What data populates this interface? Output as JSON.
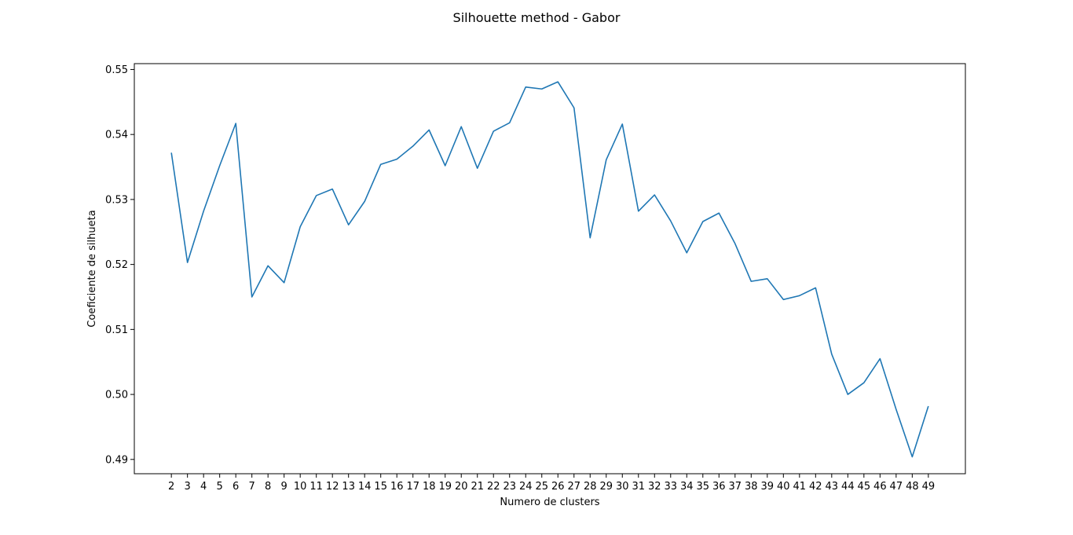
{
  "chart_data": {
    "type": "line",
    "title": "Silhouette method - Gabor",
    "xlabel": "Numero de clusters",
    "ylabel": "Coeficiente de silhueta",
    "x": [
      2,
      3,
      4,
      5,
      6,
      7,
      8,
      9,
      10,
      11,
      12,
      13,
      14,
      15,
      16,
      17,
      18,
      19,
      20,
      21,
      22,
      23,
      24,
      25,
      26,
      27,
      28,
      29,
      30,
      31,
      32,
      33,
      34,
      35,
      36,
      37,
      38,
      39,
      40,
      41,
      42,
      43,
      44,
      45,
      46,
      47,
      48,
      49
    ],
    "series": [
      {
        "values": [
          0.5372,
          0.5203,
          0.5282,
          0.5352,
          0.5417,
          0.515,
          0.5198,
          0.5172,
          0.5258,
          0.5306,
          0.5316,
          0.5261,
          0.5297,
          0.5354,
          0.5362,
          0.5382,
          0.5407,
          0.5352,
          0.5412,
          0.5348,
          0.5405,
          0.5418,
          0.5473,
          0.547,
          0.5481,
          0.5441,
          0.5241,
          0.5361,
          0.5416,
          0.5282,
          0.5307,
          0.5267,
          0.5218,
          0.5266,
          0.5279,
          0.5232,
          0.5174,
          0.5178,
          0.5146,
          0.5152,
          0.5164,
          0.5062,
          0.5,
          0.5018,
          0.5055,
          0.4977,
          0.4904,
          0.4982
        ],
        "color": "#1f77b4"
      }
    ],
    "xticks": [
      "2",
      "3",
      "4",
      "5",
      "6",
      "7",
      "8",
      "9",
      "10",
      "11",
      "12",
      "13",
      "14",
      "15",
      "16",
      "17",
      "18",
      "19",
      "20",
      "21",
      "22",
      "23",
      "24",
      "25",
      "26",
      "27",
      "28",
      "29",
      "30",
      "31",
      "32",
      "33",
      "34",
      "35",
      "36",
      "37",
      "38",
      "39",
      "40",
      "41",
      "42",
      "43",
      "44",
      "45",
      "46",
      "47",
      "48",
      "49"
    ],
    "yticks": [
      "0.49",
      "0.50",
      "0.51",
      "0.52",
      "0.53",
      "0.54",
      "0.55"
    ],
    "xlim": [
      -0.3,
      51.3
    ],
    "ylim": [
      0.4878,
      0.5509
    ],
    "grid": false,
    "legend": "none"
  }
}
